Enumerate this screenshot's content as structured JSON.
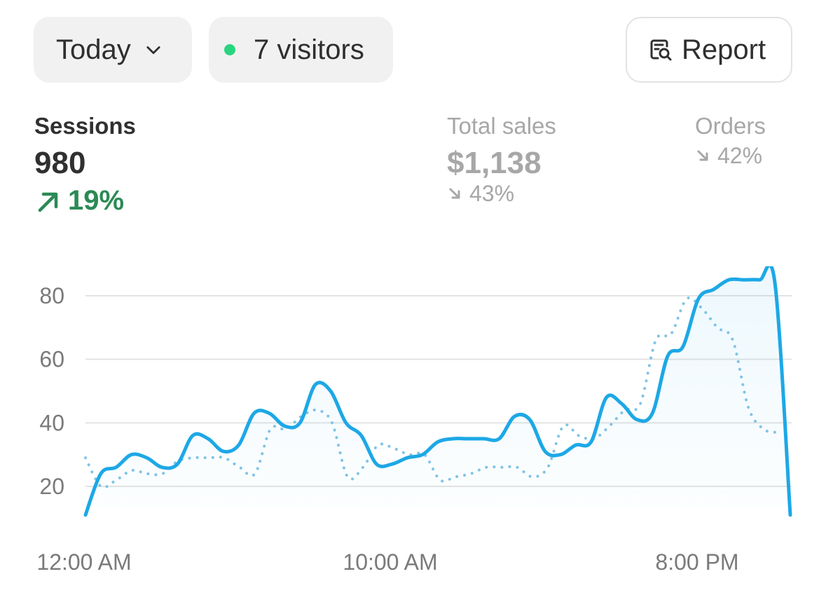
{
  "filters": {
    "period_label": "Today",
    "live_visitors_label": "7 visitors"
  },
  "toolbar": {
    "report_label": "Report"
  },
  "metrics": {
    "sessions": {
      "label": "Sessions",
      "value": "980",
      "change": "19%",
      "direction": "up"
    },
    "total_sales": {
      "label": "Total sales",
      "value": "$1,138",
      "change": "43%",
      "direction": "down"
    },
    "orders": {
      "label": "Orders",
      "value": "",
      "change": "42%",
      "direction": "down"
    }
  },
  "colors": {
    "primary_line": "#1da8e6",
    "comparison_line": "#7fc3e6",
    "positive": "#2b8a55",
    "live_dot": "#29d67f",
    "muted": "#a7a7a7"
  },
  "chart_data": {
    "type": "line",
    "title": "",
    "xlabel": "",
    "ylabel": "",
    "x_tick_labels": [
      "12:00 AM",
      "10:00 AM",
      "8:00 PM"
    ],
    "y_ticks": [
      20,
      40,
      60,
      80
    ],
    "ylim": [
      10,
      90
    ],
    "grid": true,
    "series": [
      {
        "style": "solid",
        "values": [
          11,
          24,
          26,
          30,
          29,
          26,
          27,
          36,
          35,
          31,
          33,
          43,
          43,
          39,
          40,
          52,
          50,
          40,
          36,
          27,
          27,
          29,
          30,
          34,
          35,
          35,
          35,
          35,
          42,
          41,
          31,
          30,
          33,
          34,
          48,
          46,
          41,
          43,
          61,
          64,
          79,
          82,
          85,
          85,
          85,
          84,
          11
        ]
      },
      {
        "style": "dotted",
        "values": [
          29,
          20,
          22,
          25,
          24,
          24,
          28,
          29,
          29,
          29,
          26,
          24,
          38,
          38,
          42,
          44,
          40,
          23,
          26,
          33,
          32,
          30,
          30,
          22,
          23,
          24,
          26,
          26,
          26,
          23,
          26,
          39,
          36,
          35,
          39,
          44,
          46,
          66,
          68,
          79,
          76,
          70,
          66,
          45,
          38,
          37
        ]
      }
    ]
  }
}
